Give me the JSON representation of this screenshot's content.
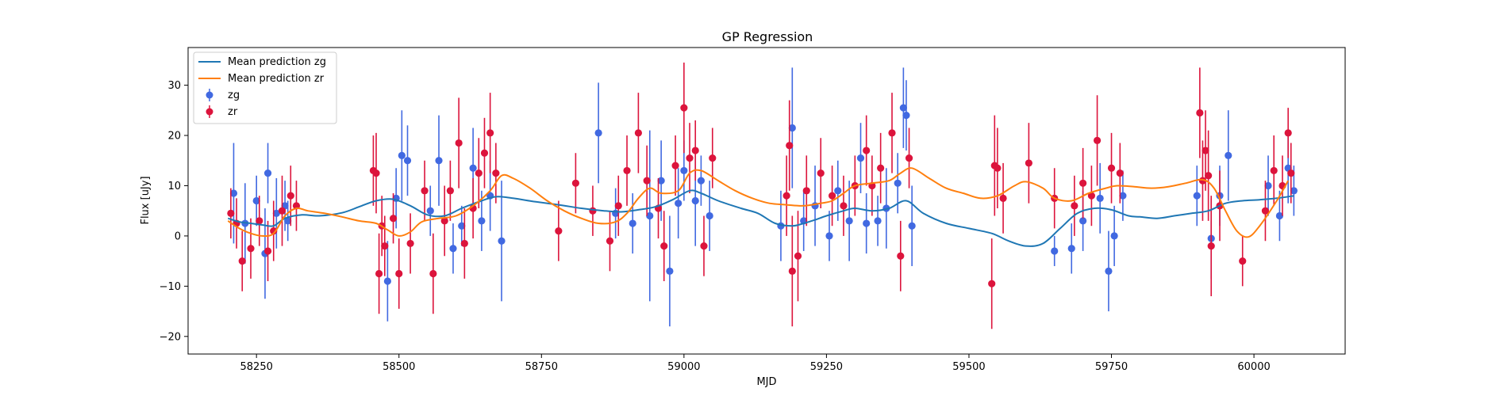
{
  "chart_data": {
    "type": "scatter",
    "title": "GP Regression",
    "xlabel": "MJD",
    "ylabel": "Flux [uJy]",
    "xlim": [
      58130,
      60160
    ],
    "ylim": [
      -23.5,
      37.5
    ],
    "xticks": [
      58250,
      58500,
      58750,
      59000,
      59250,
      59500,
      59750,
      60000
    ],
    "yticks": [
      -20,
      -10,
      0,
      10,
      20,
      30
    ],
    "grid": false,
    "legend_position": "upper-left",
    "colors": {
      "zg_mean": "#1f77b4",
      "zr_mean": "#ff7f0e",
      "zg": "#4169e1",
      "zr": "#dc143c"
    },
    "series": [
      {
        "name": "Mean prediction zg",
        "kind": "line",
        "x": [
          58200,
          58220,
          58240,
          58260,
          58280,
          58300,
          58330,
          58360,
          58400,
          58430,
          58460,
          58490,
          58520,
          58550,
          58580,
          58610,
          58640,
          58670,
          58700,
          58740,
          58780,
          58820,
          58860,
          58890,
          58920,
          58950,
          58980,
          59010,
          59030,
          59060,
          59100,
          59130,
          59160,
          59190,
          59210,
          59230,
          59250,
          59280,
          59300,
          59330,
          59360,
          59390,
          59420,
          59460,
          59500,
          59540,
          59570,
          59600,
          59630,
          59660,
          59690,
          59720,
          59750,
          59780,
          59800,
          59830,
          59860,
          59890,
          59920,
          59950,
          59980,
          60010,
          60040,
          60070
        ],
        "values": [
          3.5,
          2.8,
          2.5,
          2.2,
          2.0,
          3.5,
          4.2,
          4.0,
          4.6,
          5.8,
          7.0,
          7.3,
          6.0,
          4.2,
          4.0,
          5.5,
          6.8,
          7.8,
          7.5,
          6.8,
          6.2,
          5.5,
          5.0,
          4.8,
          5.2,
          5.8,
          7.2,
          9.0,
          8.5,
          7.0,
          5.5,
          4.5,
          2.5,
          2.0,
          2.5,
          3.2,
          4.0,
          5.0,
          5.5,
          5.0,
          5.5,
          7.0,
          4.5,
          2.5,
          1.5,
          0.5,
          -1.0,
          -2.0,
          -1.5,
          1.5,
          4.5,
          5.5,
          5.2,
          4.0,
          3.8,
          3.5,
          4.0,
          4.5,
          5.0,
          6.5,
          7.0,
          7.2,
          7.5,
          8.0
        ]
      },
      {
        "name": "Mean prediction zr",
        "kind": "line",
        "x": [
          58200,
          58220,
          58240,
          58260,
          58280,
          58300,
          58320,
          58340,
          58370,
          58400,
          58430,
          58460,
          58480,
          58500,
          58520,
          58540,
          58570,
          58600,
          58630,
          58660,
          58680,
          58700,
          58730,
          58760,
          58790,
          58820,
          58850,
          58880,
          58900,
          58920,
          58940,
          58960,
          58990,
          59010,
          59030,
          59060,
          59090,
          59120,
          59150,
          59180,
          59210,
          59240,
          59260,
          59280,
          59300,
          59330,
          59360,
          59380,
          59400,
          59430,
          59460,
          59490,
          59520,
          59550,
          59580,
          59600,
          59630,
          59650,
          59680,
          59710,
          59740,
          59760,
          59790,
          59820,
          59850,
          59880,
          59910,
          59930,
          59950,
          59970,
          59990,
          60010,
          60040,
          60060
        ],
        "values": [
          3.0,
          1.5,
          0.5,
          0.0,
          0.5,
          4.0,
          5.5,
          5.0,
          4.5,
          3.8,
          3.0,
          2.5,
          1.2,
          0.0,
          0.8,
          2.8,
          3.5,
          4.0,
          6.0,
          9.0,
          12.0,
          11.5,
          9.5,
          7.0,
          5.0,
          3.5,
          2.5,
          2.8,
          4.5,
          7.5,
          9.5,
          8.5,
          9.0,
          12.5,
          13.0,
          11.0,
          9.0,
          7.5,
          6.5,
          6.2,
          6.0,
          6.5,
          7.0,
          8.5,
          10.0,
          10.5,
          11.0,
          12.5,
          13.5,
          11.5,
          9.5,
          8.5,
          7.5,
          8.0,
          10.0,
          10.8,
          9.5,
          7.5,
          7.0,
          8.5,
          9.5,
          10.0,
          9.8,
          9.5,
          9.8,
          10.5,
          11.2,
          9.5,
          5.0,
          1.0,
          -0.2,
          2.0,
          7.0,
          11.0
        ]
      },
      {
        "name": "zg",
        "kind": "errorbar",
        "points": [
          [
            58210,
            8.5,
            10
          ],
          [
            58230,
            2.5,
            8
          ],
          [
            58250,
            7.0,
            5
          ],
          [
            58265,
            -3.5,
            9
          ],
          [
            58270,
            12.5,
            6
          ],
          [
            58285,
            4.5,
            7
          ],
          [
            58300,
            6.0,
            5
          ],
          [
            58305,
            3.0,
            4
          ],
          [
            58480,
            -9.0,
            8
          ],
          [
            58495,
            7.5,
            6
          ],
          [
            58505,
            16.0,
            9
          ],
          [
            58515,
            15.0,
            7
          ],
          [
            58555,
            5.0,
            5
          ],
          [
            58570,
            15.0,
            9
          ],
          [
            58595,
            -2.5,
            5
          ],
          [
            58610,
            2.0,
            4
          ],
          [
            58630,
            13.5,
            8
          ],
          [
            58645,
            3.0,
            6
          ],
          [
            58660,
            8.0,
            7
          ],
          [
            58680,
            -1.0,
            12
          ],
          [
            58850,
            20.5,
            10
          ],
          [
            58880,
            4.5,
            5
          ],
          [
            58910,
            2.5,
            6
          ],
          [
            58940,
            4.0,
            17
          ],
          [
            58960,
            11.0,
            8
          ],
          [
            58975,
            -7.0,
            11
          ],
          [
            58990,
            6.5,
            7
          ],
          [
            59000,
            13.0,
            6
          ],
          [
            59020,
            7.0,
            9
          ],
          [
            59030,
            11.0,
            5
          ],
          [
            59045,
            4.0,
            7
          ],
          [
            59170,
            2.0,
            7
          ],
          [
            59190,
            21.5,
            12
          ],
          [
            59210,
            3.0,
            6
          ],
          [
            59230,
            6.0,
            8
          ],
          [
            59255,
            0.0,
            5
          ],
          [
            59270,
            9.0,
            6
          ],
          [
            59290,
            3.0,
            8
          ],
          [
            59310,
            15.5,
            7
          ],
          [
            59320,
            2.5,
            6
          ],
          [
            59340,
            3.0,
            5
          ],
          [
            59355,
            5.5,
            8
          ],
          [
            59375,
            10.5,
            6
          ],
          [
            59385,
            25.5,
            8
          ],
          [
            59390,
            24.0,
            7
          ],
          [
            59400,
            2.0,
            8
          ],
          [
            59650,
            -3.0,
            3
          ],
          [
            59680,
            -2.5,
            5
          ],
          [
            59700,
            3.0,
            6
          ],
          [
            59730,
            7.5,
            7
          ],
          [
            59745,
            -7.0,
            8
          ],
          [
            59755,
            0.0,
            6
          ],
          [
            59770,
            8.0,
            5
          ],
          [
            59900,
            8.0,
            6
          ],
          [
            59925,
            -0.5,
            8
          ],
          [
            59940,
            8.0,
            6
          ],
          [
            59955,
            16.0,
            9
          ],
          [
            60025,
            10.0,
            6
          ],
          [
            60045,
            4.0,
            5
          ],
          [
            60060,
            13.5,
            7
          ],
          [
            60070,
            9.0,
            5
          ]
        ]
      },
      {
        "name": "zr",
        "kind": "errorbar",
        "points": [
          [
            58205,
            4.5,
            5
          ],
          [
            58215,
            2.5,
            5
          ],
          [
            58225,
            -5.0,
            6
          ],
          [
            58240,
            -2.5,
            6
          ],
          [
            58255,
            3.0,
            5
          ],
          [
            58270,
            -3.0,
            6
          ],
          [
            58280,
            1.0,
            6
          ],
          [
            58295,
            5.0,
            7
          ],
          [
            58310,
            8.0,
            6
          ],
          [
            58320,
            6.0,
            5
          ],
          [
            58455,
            13.0,
            7
          ],
          [
            58460,
            12.5,
            8
          ],
          [
            58465,
            -7.5,
            8
          ],
          [
            58470,
            2.0,
            6
          ],
          [
            58475,
            -2.0,
            6
          ],
          [
            58490,
            3.5,
            5
          ],
          [
            58500,
            -7.5,
            7
          ],
          [
            58520,
            -1.5,
            6
          ],
          [
            58545,
            9.0,
            6
          ],
          [
            58560,
            -7.5,
            8
          ],
          [
            58580,
            3.0,
            7
          ],
          [
            58590,
            9.0,
            6
          ],
          [
            58605,
            18.5,
            9
          ],
          [
            58615,
            -1.5,
            7
          ],
          [
            58630,
            5.5,
            6
          ],
          [
            58640,
            12.5,
            7
          ],
          [
            58650,
            16.5,
            7
          ],
          [
            58660,
            20.5,
            8
          ],
          [
            58670,
            12.5,
            6
          ],
          [
            58780,
            1.0,
            6
          ],
          [
            58810,
            10.5,
            6
          ],
          [
            58840,
            5.0,
            5
          ],
          [
            58870,
            -1.0,
            6
          ],
          [
            58885,
            6.0,
            6
          ],
          [
            58900,
            13.0,
            7
          ],
          [
            58920,
            20.5,
            8
          ],
          [
            58935,
            11.0,
            7
          ],
          [
            58955,
            5.5,
            6
          ],
          [
            58965,
            -2.0,
            7
          ],
          [
            58985,
            14.0,
            6
          ],
          [
            59000,
            25.5,
            9
          ],
          [
            59010,
            15.5,
            7
          ],
          [
            59020,
            17.0,
            6
          ],
          [
            59035,
            -2.0,
            6
          ],
          [
            59050,
            15.5,
            6
          ],
          [
            59180,
            8.0,
            8
          ],
          [
            59185,
            18.0,
            9
          ],
          [
            59190,
            -7.0,
            11
          ],
          [
            59200,
            -4.0,
            9
          ],
          [
            59215,
            9.0,
            7
          ],
          [
            59240,
            12.5,
            7
          ],
          [
            59260,
            8.0,
            6
          ],
          [
            59280,
            6.0,
            6
          ],
          [
            59300,
            10.0,
            6
          ],
          [
            59320,
            17.0,
            7
          ],
          [
            59330,
            10.0,
            6
          ],
          [
            59345,
            13.5,
            7
          ],
          [
            59365,
            20.5,
            8
          ],
          [
            59380,
            -4.0,
            7
          ],
          [
            59395,
            15.5,
            6
          ],
          [
            59540,
            -9.5,
            9
          ],
          [
            59545,
            14.0,
            10
          ],
          [
            59550,
            13.5,
            8
          ],
          [
            59560,
            7.5,
            7
          ],
          [
            59605,
            14.5,
            8
          ],
          [
            59650,
            7.5,
            6
          ],
          [
            59685,
            6.0,
            6
          ],
          [
            59700,
            10.5,
            7
          ],
          [
            59715,
            8.0,
            6
          ],
          [
            59725,
            19.0,
            9
          ],
          [
            59750,
            13.5,
            7
          ],
          [
            59765,
            12.5,
            6
          ],
          [
            59905,
            24.5,
            9
          ],
          [
            59910,
            11.0,
            8
          ],
          [
            59915,
            17.0,
            8
          ],
          [
            59920,
            12.0,
            9
          ],
          [
            59925,
            -2.0,
            10
          ],
          [
            59940,
            6.0,
            7
          ],
          [
            59980,
            -5.0,
            5
          ],
          [
            60020,
            5.0,
            6
          ],
          [
            60035,
            13.0,
            7
          ],
          [
            60050,
            10.0,
            6
          ],
          [
            60060,
            20.5,
            5
          ],
          [
            60065,
            12.5,
            6
          ]
        ]
      }
    ]
  }
}
